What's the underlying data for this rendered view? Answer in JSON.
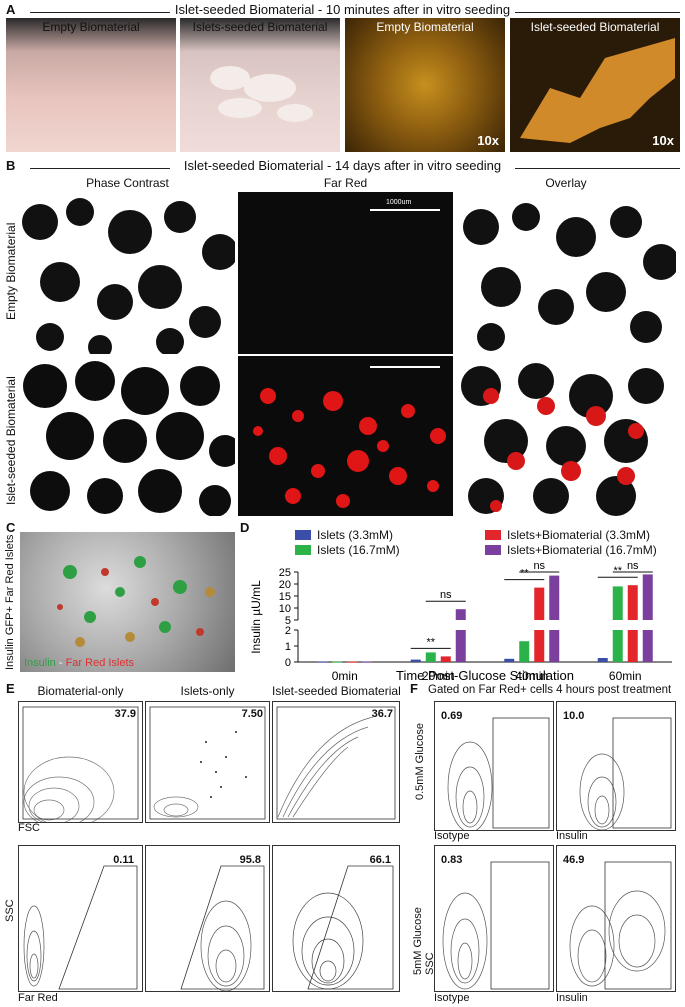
{
  "panelA": {
    "letter": "A",
    "header": "Islet-seeded Biomaterial - 10 minutes after in vitro seeding",
    "images": [
      {
        "title": "Empty Biomaterial"
      },
      {
        "title": "Islets-seeded Biomaterial"
      },
      {
        "title": "Empty Biomaterial",
        "mag": "10x"
      },
      {
        "title": "Islet-seeded Biomaterial",
        "mag": "10x"
      }
    ]
  },
  "panelB": {
    "letter": "B",
    "header": "Islet-seeded Biomaterial - 14 days after in vitro seeding",
    "columns": [
      "Phase Contrast",
      "Far Red",
      "Overlay"
    ],
    "rows": [
      "Empty Biomaterial",
      "Islet-seeded Biomaterial"
    ],
    "scalebar": "1000um"
  },
  "panelC": {
    "letter": "C",
    "ylabel": "Insulin GFP+ Far Red Islets",
    "legend_green": "Insulin",
    "legend_sep": " - ",
    "legend_red": "Far Red Islets"
  },
  "panelD": {
    "letter": "D",
    "chart_data": {
      "type": "bar",
      "categories": [
        "0min",
        "20min",
        "40min",
        "60min"
      ],
      "series": [
        {
          "name": "Islets (3.3mM)",
          "color": "#3c4fa8",
          "values": [
            0.02,
            0.15,
            0.2,
            0.25
          ]
        },
        {
          "name": "Islets (16.7mM)",
          "color": "#2bb34a",
          "values": [
            0.02,
            0.6,
            1.3,
            19
          ]
        },
        {
          "name": "Islets+Biomaterial (3.3mM)",
          "color": "#e3262b",
          "values": [
            0.02,
            0.35,
            18.5,
            19.5
          ]
        },
        {
          "name": "Islets+Biomaterial (16.7mM)",
          "color": "#7b3f9e",
          "values": [
            0.02,
            9.5,
            23.5,
            24
          ]
        }
      ],
      "ylabel": "Insulin µU/mL",
      "xlabel": "Time Post-Glucose Stimulation",
      "yticks_lower": [
        "0",
        "1",
        "2"
      ],
      "yticks_upper": [
        "5",
        "10",
        "15",
        "20",
        "25"
      ],
      "significance": [
        {
          "category": "20min",
          "labels": [
            "**",
            "ns"
          ]
        },
        {
          "category": "40min",
          "labels": [
            "**",
            "ns"
          ]
        },
        {
          "category": "60min",
          "labels": [
            "**",
            "ns"
          ]
        }
      ]
    }
  },
  "panelE": {
    "letter": "E",
    "columns": [
      "Biomaterial-only",
      "Islets-only",
      "Islet-seeded Biomaterial"
    ],
    "top_gates": [
      "37.9",
      "7.50",
      "36.7"
    ],
    "bottom_gates": [
      "0.11",
      "95.8",
      "66.1"
    ],
    "xlabel_top": "FSC",
    "xlabel_bottom": "Far Red",
    "ylabel": "SSC"
  },
  "panelF": {
    "letter": "F",
    "header": "Gated on Far Red+ cells 4 hours post treatment",
    "rows": [
      "0.5mM Glucose",
      "5mM Glucose"
    ],
    "ylabel": "SSC",
    "columns": [
      "Isotype",
      "Insulin"
    ],
    "gates": [
      [
        "0.69",
        "10.0"
      ],
      [
        "0.83",
        "46.9"
      ]
    ]
  }
}
